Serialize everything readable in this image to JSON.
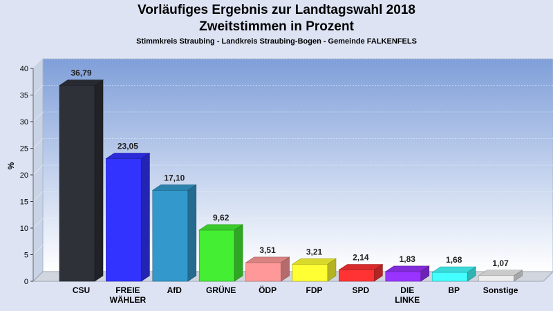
{
  "chart_data": {
    "type": "bar",
    "title": "Vorläufiges Ergebnis zur Landtagswahl 2018",
    "title2": "Zweitstimmen in Prozent",
    "subtitle": "Stimmkreis Straubing - Landkreis Straubing-Bogen - Gemeinde FALKENFELS",
    "ylabel": "%",
    "xlabel": "",
    "ylim": [
      0,
      40
    ],
    "yticks": [
      0,
      5,
      10,
      15,
      20,
      25,
      30,
      35,
      40
    ],
    "grid": true,
    "categories": [
      [
        "CSU"
      ],
      [
        "FREIE",
        "WÄHLER"
      ],
      [
        "AfD"
      ],
      [
        "GRÜNE"
      ],
      [
        "ÖDP"
      ],
      [
        "FDP"
      ],
      [
        "SPD"
      ],
      [
        "DIE",
        "LINKE"
      ],
      [
        "BP"
      ],
      [
        "Sonstige"
      ]
    ],
    "values": [
      36.79,
      23.05,
      17.1,
      9.62,
      3.51,
      3.21,
      2.14,
      1.83,
      1.68,
      1.07
    ],
    "value_labels": [
      "36,79",
      "23,05",
      "17,10",
      "9,62",
      "3,51",
      "3,21",
      "2,14",
      "1,83",
      "1,68",
      "1,07"
    ],
    "colors": [
      "#2e3138",
      "#3333ff",
      "#3399cc",
      "#44ee33",
      "#ff9999",
      "#ffff33",
      "#ff3333",
      "#9933ff",
      "#44ffff",
      "#eeeeee"
    ]
  }
}
